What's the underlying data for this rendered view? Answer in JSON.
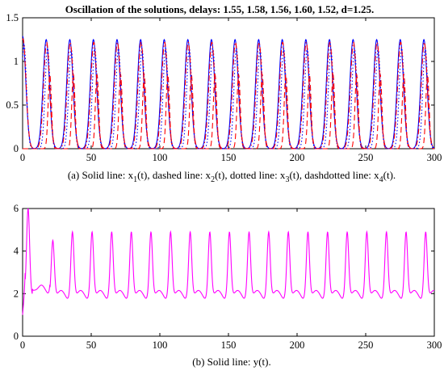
{
  "title": "Oscillation of the solutions, delays: 1.55, 1.58, 1.56, 1.60, 1.52, d=1.25.",
  "colors": {
    "blue": "#0000ff",
    "red": "#ff0000",
    "magenta": "#ff00ff",
    "axis": "#000000"
  },
  "chart_data": [
    {
      "type": "line",
      "caption_prefix": "(a) Solid line: x",
      "caption_parts": [
        "1",
        "(t), dashed line: x",
        "2",
        "(t), dotted line: x",
        "3",
        "(t), dashdotted line: x",
        "4",
        "(t)."
      ],
      "xlim": [
        0,
        300
      ],
      "ylim": [
        0,
        1.5
      ],
      "x_ticks": [
        "0",
        "50",
        "100",
        "150",
        "200",
        "250",
        "300"
      ],
      "y_ticks": [
        "0",
        "0.5",
        "1",
        "1.5"
      ],
      "period": 17.2,
      "series": [
        {
          "style": "solid",
          "color": "#0000ff",
          "peak": 1.25,
          "width": 2.3,
          "phase": 0.0,
          "first_peak": 1.29
        },
        {
          "style": "dashed",
          "color": "#ff0000",
          "peak": 0.85,
          "width": 1.2,
          "phase": 2.6,
          "first_peak": 0.0
        },
        {
          "style": "dotted",
          "color": "#0000ff",
          "peak": 1.15,
          "width": 1.8,
          "phase": 1.0,
          "first_peak": 1.2
        },
        {
          "style": "dashdot",
          "color": "#ff0000",
          "peak": 1.22,
          "width": 2.2,
          "phase": 0.3,
          "first_peak": 1.26
        }
      ]
    },
    {
      "type": "line",
      "caption": "(b) Solid line: y(t).",
      "xlim": [
        0,
        300
      ],
      "ylim": [
        0,
        6
      ],
      "x_ticks": [
        "0",
        "50",
        "100",
        "150",
        "200",
        "250",
        "300"
      ],
      "y_ticks": [
        "0",
        "2",
        "4",
        "6"
      ],
      "series": [
        {
          "style": "solid",
          "color": "#ff00ff",
          "peak": 4.9,
          "baseline": 1.9,
          "period": 14.3,
          "first_peak_x": 4,
          "first_peak": 6.0,
          "second_peak_x": 22,
          "second_peak": 4.5
        }
      ]
    }
  ]
}
